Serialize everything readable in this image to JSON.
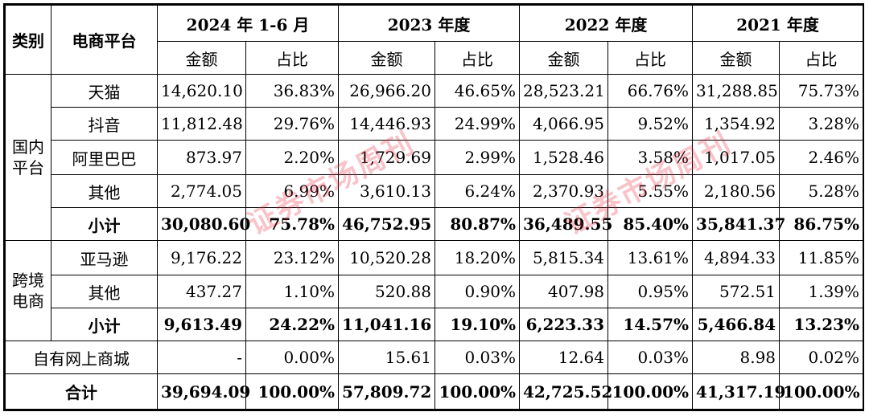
{
  "header": {
    "category": "类别",
    "platform": "电商平台",
    "periods": [
      "2024 年 1-6 月",
      "2023 年度",
      "2022 年度",
      "2021 年度"
    ],
    "amount": "金额",
    "ratio": "占比"
  },
  "groups": {
    "domestic": "国内平台",
    "crossborder": "跨境电商"
  },
  "rows": [
    {
      "name": "天猫",
      "v": [
        "14,620.10",
        "36.83%",
        "26,966.20",
        "46.65%",
        "28,523.21",
        "66.76%",
        "31,288.85",
        "75.73%"
      ]
    },
    {
      "name": "抖音",
      "v": [
        "11,812.48",
        "29.76%",
        "14,446.93",
        "24.99%",
        "4,066.95",
        "9.52%",
        "1,354.92",
        "3.28%"
      ]
    },
    {
      "name": "阿里巴巴",
      "v": [
        "873.97",
        "2.20%",
        "1,729.69",
        "2.99%",
        "1,528.46",
        "3.58%",
        "1,017.05",
        "2.46%"
      ]
    },
    {
      "name": "其他",
      "v": [
        "2,774.05",
        "6.99%",
        "3,610.13",
        "6.24%",
        "2,370.93",
        "5.55%",
        "2,180.56",
        "5.28%"
      ]
    },
    {
      "name": "小计",
      "v": [
        "30,080.60",
        "75.78%",
        "46,752.95",
        "80.87%",
        "36,489.55",
        "85.40%",
        "35,841.37",
        "86.75%"
      ]
    },
    {
      "name": "亚马逊",
      "v": [
        "9,176.22",
        "23.12%",
        "10,520.28",
        "18.20%",
        "5,815.34",
        "13.61%",
        "4,894.33",
        "11.85%"
      ]
    },
    {
      "name": "其他",
      "v": [
        "437.27",
        "1.10%",
        "520.88",
        "0.90%",
        "407.98",
        "0.95%",
        "572.51",
        "1.39%"
      ]
    },
    {
      "name": "小计",
      "v": [
        "9,613.49",
        "24.22%",
        "11,041.16",
        "19.10%",
        "6,223.33",
        "14.57%",
        "5,466.84",
        "13.23%"
      ]
    },
    {
      "name": "自有网上商城",
      "v": [
        "-",
        "0.00%",
        "15.61",
        "0.03%",
        "12.64",
        "0.03%",
        "8.98",
        "0.02%"
      ]
    },
    {
      "name": "合计",
      "v": [
        "39,694.09",
        "100.00%",
        "57,809.72",
        "100.00%",
        "42,725.52",
        "100.00%",
        "41,317.19",
        "100.00%"
      ]
    }
  ],
  "watermark": {
    "text": "证券市场周刊",
    "color": "#e6283c"
  }
}
